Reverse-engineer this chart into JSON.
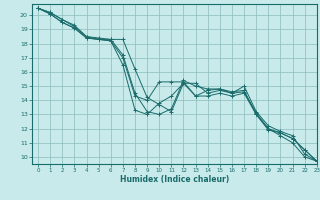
{
  "xlabel": "Humidex (Indice chaleur)",
  "background_color": "#c8eaea",
  "grid_color": "#8bbcbc",
  "line_color": "#1a6b6b",
  "marker": "+",
  "xlim": [
    -0.5,
    23
  ],
  "ylim": [
    9.5,
    20.8
  ],
  "xticks": [
    0,
    1,
    2,
    3,
    4,
    5,
    6,
    7,
    8,
    9,
    10,
    11,
    12,
    13,
    14,
    15,
    16,
    17,
    18,
    19,
    20,
    21,
    22,
    23
  ],
  "yticks": [
    10,
    11,
    12,
    13,
    14,
    15,
    16,
    17,
    18,
    19,
    20
  ],
  "series": [
    [
      20.5,
      20.2,
      19.7,
      19.2,
      18.5,
      18.4,
      18.3,
      17.2,
      14.5,
      13.2,
      13.0,
      13.4,
      15.4,
      15.0,
      14.8,
      14.8,
      14.6,
      14.7,
      13.0,
      12.0,
      11.5,
      11.0,
      10.0,
      9.7
    ],
    [
      20.5,
      20.2,
      19.7,
      19.3,
      18.5,
      18.3,
      18.3,
      18.3,
      16.2,
      14.2,
      13.7,
      13.2,
      15.2,
      15.2,
      14.5,
      14.7,
      14.5,
      15.0,
      13.2,
      12.2,
      11.8,
      11.5,
      10.2,
      9.7
    ],
    [
      20.5,
      20.1,
      19.5,
      19.1,
      18.4,
      18.3,
      18.2,
      17.0,
      14.3,
      14.0,
      15.3,
      15.3,
      15.3,
      14.3,
      14.7,
      14.8,
      14.5,
      14.6,
      13.1,
      12.0,
      11.7,
      11.3,
      10.5,
      9.7
    ],
    [
      20.5,
      20.1,
      19.5,
      19.1,
      18.4,
      18.3,
      18.2,
      16.5,
      13.3,
      13.0,
      13.8,
      14.3,
      15.2,
      14.3,
      14.3,
      14.5,
      14.3,
      14.5,
      13.0,
      11.9,
      11.7,
      11.3,
      10.5,
      9.7
    ]
  ]
}
